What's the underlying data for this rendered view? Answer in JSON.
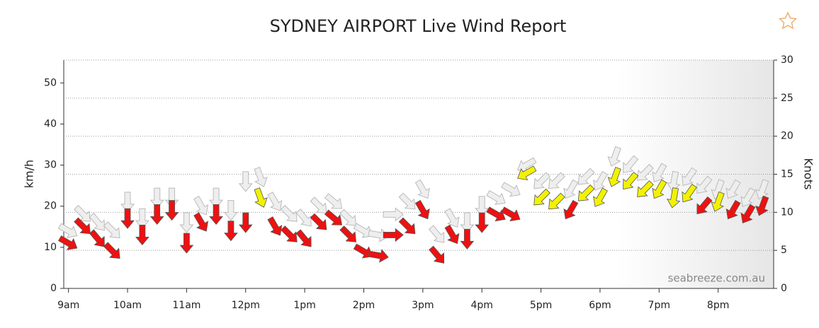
{
  "chart_data": {
    "type": "wind-arrows",
    "title": "SYDNEY AIRPORT Live Wind Report",
    "y_label": "km/h",
    "y2_label": "Knots",
    "watermark": "seabreeze.com.au",
    "xlim": [
      8.92,
      20.94
    ],
    "xticks": [
      {
        "value": 9,
        "label": "9am"
      },
      {
        "value": 10,
        "label": "10am"
      },
      {
        "value": 11,
        "label": "11am"
      },
      {
        "value": 12,
        "label": "12pm"
      },
      {
        "value": 13,
        "label": "1pm"
      },
      {
        "value": 14,
        "label": "2pm"
      },
      {
        "value": 15,
        "label": "3pm"
      },
      {
        "value": 16,
        "label": "4pm"
      },
      {
        "value": 17,
        "label": "5pm"
      },
      {
        "value": 18,
        "label": "6pm"
      },
      {
        "value": 19,
        "label": "7pm"
      },
      {
        "value": 20,
        "label": "8pm"
      }
    ],
    "ylim": [
      0,
      55.56
    ],
    "yticks": [
      0,
      10,
      20,
      30,
      40,
      50
    ],
    "y2lim": [
      0,
      30
    ],
    "y2ticks": [
      0,
      5,
      10,
      15,
      20,
      25,
      30
    ],
    "grid": true,
    "x": [
      9,
      9.25,
      9.5,
      9.75,
      10,
      10.25,
      10.5,
      10.75,
      11,
      11.25,
      11.5,
      11.75,
      12,
      12.25,
      12.5,
      12.75,
      13,
      13.25,
      13.5,
      13.75,
      14,
      14.25,
      14.5,
      14.75,
      15,
      15.25,
      15.5,
      15.75,
      16,
      16.25,
      16.5,
      16.75,
      17,
      17.25,
      17.5,
      17.75,
      18,
      18.25,
      18.5,
      18.75,
      19,
      19.25,
      19.5,
      19.75,
      20,
      20.25,
      20.5,
      20.75
    ],
    "values": [
      11,
      15,
      12,
      9,
      17,
      13,
      18,
      19,
      11,
      16,
      18,
      14,
      16,
      22,
      15,
      13,
      12,
      16,
      17,
      13,
      9,
      8,
      13,
      15,
      19,
      8,
      13,
      12,
      16,
      18,
      18,
      28,
      22,
      21,
      19,
      23,
      22,
      27,
      26,
      24,
      24,
      22,
      23,
      20,
      21,
      19,
      18,
      20
    ],
    "gusts": [
      14,
      18,
      16,
      14,
      21,
      17,
      22,
      22,
      16,
      20,
      22,
      19,
      26,
      27,
      21,
      18,
      17,
      20,
      21,
      17,
      14,
      13,
      18,
      21,
      24,
      13,
      17,
      16,
      20,
      22,
      24,
      30,
      26,
      26,
      24,
      27,
      26,
      32,
      30,
      28,
      28,
      26,
      27,
      25,
      24,
      24,
      22,
      24
    ],
    "directions": [
      300,
      315,
      320,
      315,
      0,
      0,
      0,
      0,
      0,
      330,
      0,
      0,
      0,
      340,
      330,
      315,
      320,
      315,
      310,
      315,
      300,
      280,
      270,
      315,
      330,
      320,
      330,
      0,
      0,
      300,
      300,
      60,
      45,
      45,
      30,
      45,
      30,
      20,
      40,
      45,
      30,
      10,
      35,
      40,
      20,
      30,
      30,
      20
    ],
    "colors": [
      "#ee1111",
      "#ee1111",
      "#ee1111",
      "#ee1111",
      "#ee1111",
      "#ee1111",
      "#ee1111",
      "#ee1111",
      "#ee1111",
      "#ee1111",
      "#ee1111",
      "#ee1111",
      "#ee1111",
      "#f2f200",
      "#ee1111",
      "#ee1111",
      "#ee1111",
      "#ee1111",
      "#ee1111",
      "#ee1111",
      "#ee1111",
      "#ee1111",
      "#ee1111",
      "#ee1111",
      "#ee1111",
      "#ee1111",
      "#ee1111",
      "#ee1111",
      "#ee1111",
      "#ee1111",
      "#ee1111",
      "#f2f200",
      "#f2f200",
      "#f2f200",
      "#ee1111",
      "#f2f200",
      "#f2f200",
      "#f2f200",
      "#f2f200",
      "#f2f200",
      "#f2f200",
      "#f2f200",
      "#f2f200",
      "#ee1111",
      "#f2f200",
      "#ee1111",
      "#ee1111",
      "#ee1111"
    ],
    "gust_color": "#eeeeee"
  }
}
